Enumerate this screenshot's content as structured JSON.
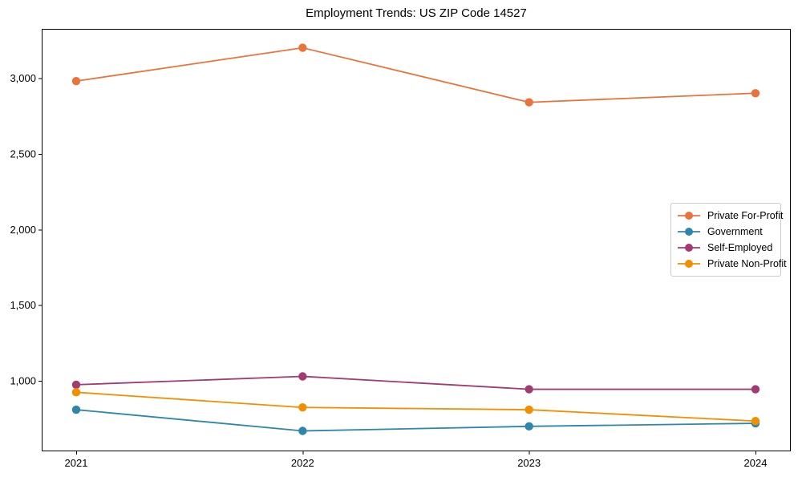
{
  "chart_data": {
    "type": "line",
    "title": "Employment Trends: US ZIP Code 14527",
    "categories": [
      "2021",
      "2022",
      "2023",
      "2024"
    ],
    "series": [
      {
        "name": "Private For-Profit",
        "color": "#e8743b",
        "values": [
          2980,
          3200,
          2840,
          2900
        ]
      },
      {
        "name": "Government",
        "color": "#2e86ab",
        "values": [
          810,
          670,
          700,
          720
        ]
      },
      {
        "name": "Self-Employed",
        "color": "#a23b72",
        "values": [
          975,
          1030,
          945,
          945
        ]
      },
      {
        "name": "Private Non-Profit",
        "color": "#f18f01",
        "values": [
          925,
          825,
          810,
          735
        ]
      }
    ],
    "xlabel": "",
    "ylabel": "",
    "ylim": [
      535,
      3325
    ],
    "y_ticks": [
      1000,
      1500,
      2000,
      2500,
      3000
    ],
    "y_tick_labels": [
      "1,000",
      "1,500",
      "2,000",
      "2,500",
      "3,000"
    ],
    "x_tick_labels": [
      "2021",
      "2022",
      "2023",
      "2024"
    ],
    "grid": false,
    "legend_position": "center-right",
    "marker": "circle",
    "frame_color": "#000000"
  }
}
